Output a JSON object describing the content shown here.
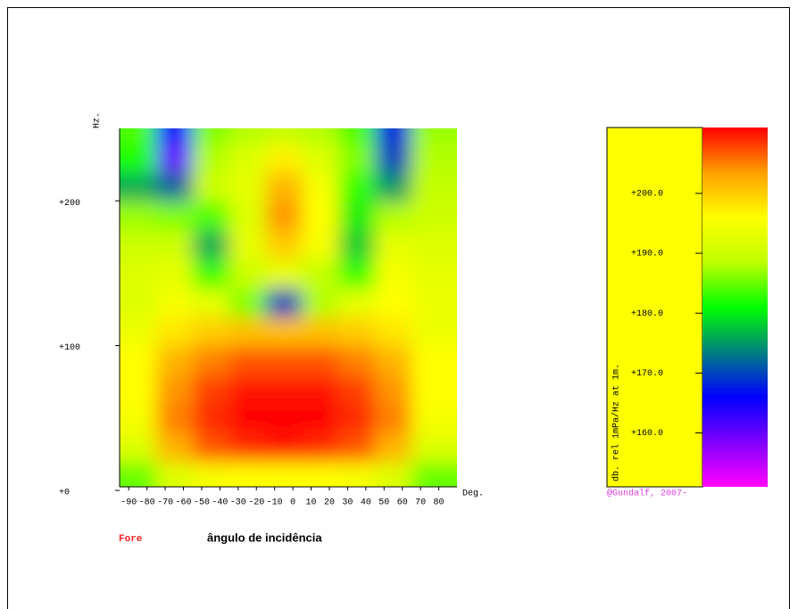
{
  "chart_data": {
    "type": "heatmap",
    "x_label": "Deg.",
    "y_label": "Hz.",
    "caption": "ângulo de incidência",
    "side_label": "Fore",
    "x": [
      -85,
      -65,
      -45,
      -25,
      -5,
      15,
      35,
      55,
      75
    ],
    "y": [
      10,
      30,
      50,
      70,
      90,
      110,
      130,
      150,
      170,
      190,
      210,
      230,
      250
    ],
    "values": [
      [
        185,
        192,
        195,
        196,
        196,
        196,
        195,
        192,
        185
      ],
      [
        192,
        202,
        207,
        209,
        210,
        209,
        207,
        202,
        192
      ],
      [
        195,
        205,
        209,
        211,
        211,
        211,
        209,
        205,
        195
      ],
      [
        196,
        204,
        208,
        210,
        210,
        210,
        208,
        204,
        196
      ],
      [
        196,
        202,
        205,
        207,
        207,
        207,
        205,
        202,
        196
      ],
      [
        194,
        198,
        200,
        201,
        201,
        201,
        200,
        198,
        194
      ],
      [
        192,
        195,
        193,
        186,
        170,
        188,
        193,
        196,
        194
      ],
      [
        192,
        193,
        183,
        190,
        193,
        189,
        183,
        195,
        193
      ],
      [
        190,
        190,
        176,
        193,
        200,
        195,
        178,
        193,
        192
      ],
      [
        187,
        186,
        184,
        192,
        204,
        196,
        180,
        188,
        190
      ],
      [
        176,
        172,
        190,
        193,
        202,
        195,
        183,
        175,
        189
      ],
      [
        182,
        160,
        188,
        192,
        197,
        192,
        186,
        170,
        188
      ],
      [
        184,
        165,
        186,
        188,
        189,
        188,
        184,
        168,
        187
      ]
    ],
    "xlim": [
      -95,
      90
    ],
    "ylim": [
      0,
      250
    ],
    "xticks": [
      -90,
      -80,
      -70,
      -60,
      -50,
      -40,
      -30,
      -20,
      -10,
      0,
      10,
      20,
      30,
      40,
      50,
      60,
      70,
      80
    ],
    "yticks": [
      {
        "value": 0,
        "label": "+0"
      },
      {
        "value": 100,
        "label": "+100"
      },
      {
        "value": 200,
        "label": "+200"
      }
    ],
    "colorbar": {
      "label": "db. rel 1mPa/Hz at 1m.",
      "credit": "@Gundalf, 2007-",
      "clim": [
        151,
        211
      ],
      "ticks": [
        {
          "value": 160,
          "label": "+160.0"
        },
        {
          "value": 170,
          "label": "+170.0"
        },
        {
          "value": 180,
          "label": "+180.0"
        },
        {
          "value": 190,
          "label": "+190.0"
        },
        {
          "value": 200,
          "label": "+200.0"
        }
      ]
    },
    "colorscale": [
      "#ff00ff",
      "#8000ff",
      "#0000ff",
      "#008080",
      "#00ff00",
      "#c0ff00",
      "#ffff00",
      "#ffa000",
      "#ff0000"
    ]
  }
}
